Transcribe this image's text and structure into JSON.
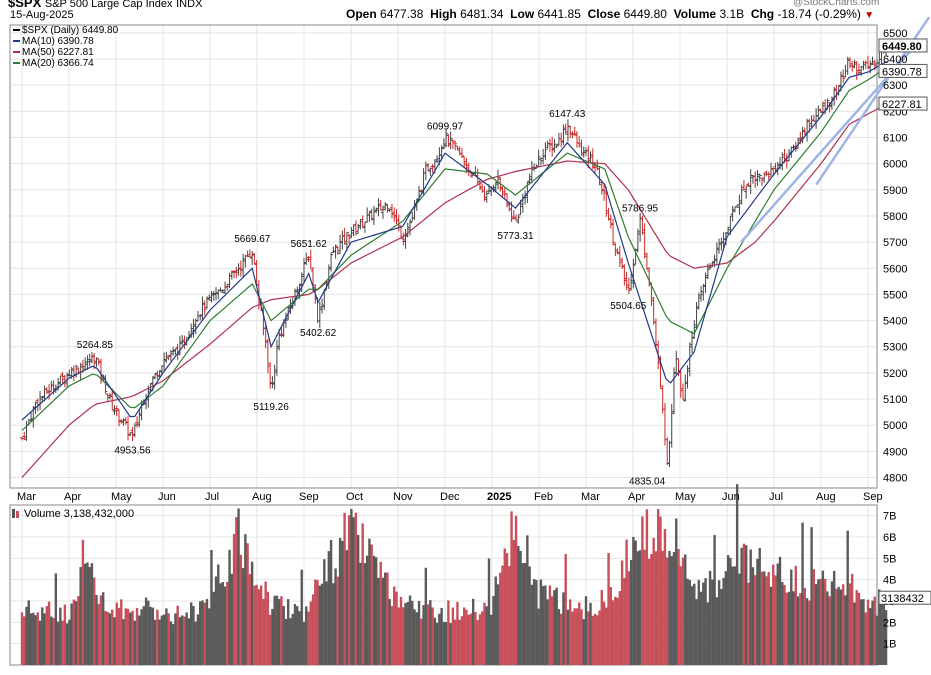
{
  "header": {
    "symbol": "$SPX",
    "name": "S&P 500 Large Cap Index",
    "exchange": "INDX",
    "date": "15-Aug-2025",
    "watermark": "@StockCharts.com",
    "open_label": "Open",
    "open": "6477.38",
    "high_label": "High",
    "high": "6481.34",
    "low_label": "Low",
    "low": "6441.85",
    "close_label": "Close",
    "close": "6449.80",
    "volume_label": "Volume",
    "volume": "3.1B",
    "chg_label": "Chg",
    "chg": "-18.74 (-0.29%)"
  },
  "legend": [
    {
      "text": "$SPX (Daily) 6449.80",
      "color": "#000000"
    },
    {
      "text": "MA(10) 6390.78",
      "color": "#1f3a8a"
    },
    {
      "text": "MA(50) 6227.81",
      "color": "#b03050"
    },
    {
      "text": "MA(20) 6366.74",
      "color": "#2e7d32"
    }
  ],
  "volume_legend": "Volume 3,138,432,000",
  "price_tags": [
    {
      "text": "6449.80",
      "value": 6449.8,
      "bold": true
    },
    {
      "text": "6390.78",
      "value": 6390.78,
      "bold": false
    },
    {
      "text": "6227.81",
      "value": 6227.81,
      "bold": false
    }
  ],
  "volume_tag": "3138432",
  "colors": {
    "up": "#444444",
    "down": "#c82828",
    "bar_up": "#5a5a5a",
    "bar_down": "#c8505a",
    "ma10": "#1f3a8a",
    "ma20": "#2e7d32",
    "ma50": "#b03050",
    "trend": "#9fb4e6",
    "grid": "#e4e4e4"
  },
  "chart_data": {
    "type": "line",
    "title": "$SPX (Daily)",
    "x_ticks": [
      "Mar",
      "Apr",
      "May",
      "Jun",
      "Jul",
      "Aug",
      "Sep",
      "Oct",
      "Nov",
      "Dec",
      "2025",
      "Feb",
      "Mar",
      "Apr",
      "May",
      "Jun",
      "Jul",
      "Aug",
      "Sep"
    ],
    "y_ticks": [
      4800,
      4900,
      5000,
      5100,
      5200,
      5300,
      5400,
      5500,
      5600,
      5700,
      5800,
      5900,
      6000,
      6100,
      6200,
      6300,
      6400,
      6500
    ],
    "ylim": [
      4760,
      6530
    ],
    "volume_ticks": [
      "1B",
      "2B",
      "3B",
      "4B",
      "5B",
      "6B",
      "7B"
    ],
    "volume_ylim": [
      0,
      7.5
    ],
    "grid": true,
    "annotations": [
      {
        "text": "5264.85",
        "month": 1.55,
        "value": 5264.85,
        "pos": "above"
      },
      {
        "text": "4953.56",
        "month": 2.35,
        "value": 4953.56,
        "pos": "below"
      },
      {
        "text": "5669.67",
        "month": 4.9,
        "value": 5669.67,
        "pos": "above"
      },
      {
        "text": "5119.26",
        "month": 5.3,
        "value": 5119.26,
        "pos": "below"
      },
      {
        "text": "5651.62",
        "month": 6.1,
        "value": 5651.62,
        "pos": "above"
      },
      {
        "text": "5402.62",
        "month": 6.3,
        "value": 5402.62,
        "pos": "below"
      },
      {
        "text": "6099.97",
        "month": 9.0,
        "value": 6099.97,
        "pos": "above"
      },
      {
        "text": "5773.31",
        "month": 10.5,
        "value": 5773.31,
        "pos": "below"
      },
      {
        "text": "6147.43",
        "month": 11.6,
        "value": 6147.43,
        "pos": "above"
      },
      {
        "text": "5786.95",
        "month": 13.15,
        "value": 5786.95,
        "pos": "above"
      },
      {
        "text": "5504.65",
        "month": 12.9,
        "value": 5504.65,
        "pos": "below"
      },
      {
        "text": "4835.04",
        "month": 13.3,
        "value": 4835.04,
        "pos": "below"
      }
    ],
    "close_points": [
      [
        0,
        4950
      ],
      [
        0.3,
        5090
      ],
      [
        0.6,
        5140
      ],
      [
        1.0,
        5200
      ],
      [
        1.4,
        5240
      ],
      [
        1.55,
        5264.85
      ],
      [
        1.9,
        5080
      ],
      [
        2.35,
        4953.56
      ],
      [
        2.6,
        5110
      ],
      [
        3.0,
        5250
      ],
      [
        3.4,
        5300
      ],
      [
        3.7,
        5420
      ],
      [
        4.0,
        5480
      ],
      [
        4.3,
        5530
      ],
      [
        4.6,
        5600
      ],
      [
        4.9,
        5669.67
      ],
      [
        5.05,
        5460
      ],
      [
        5.2,
        5300
      ],
      [
        5.3,
        5119.26
      ],
      [
        5.45,
        5330
      ],
      [
        5.7,
        5450
      ],
      [
        6.1,
        5651.62
      ],
      [
        6.3,
        5402.62
      ],
      [
        6.6,
        5660
      ],
      [
        7.0,
        5740
      ],
      [
        7.4,
        5800
      ],
      [
        7.8,
        5850
      ],
      [
        8.1,
        5720
      ],
      [
        8.3,
        5790
      ],
      [
        8.6,
        5980
      ],
      [
        8.8,
        6020
      ],
      [
        9.0,
        6099.97
      ],
      [
        9.3,
        6040
      ],
      [
        9.6,
        5950
      ],
      [
        9.9,
        5870
      ],
      [
        10.1,
        5950
      ],
      [
        10.3,
        5850
      ],
      [
        10.5,
        5773.31
      ],
      [
        10.8,
        5950
      ],
      [
        11.1,
        6050
      ],
      [
        11.4,
        6080
      ],
      [
        11.6,
        6147.43
      ],
      [
        11.9,
        6050
      ],
      [
        12.2,
        5990
      ],
      [
        12.4,
        5860
      ],
      [
        12.6,
        5700
      ],
      [
        12.75,
        5600
      ],
      [
        12.9,
        5504.65
      ],
      [
        13.15,
        5786.95
      ],
      [
        13.35,
        5550
      ],
      [
        13.55,
        5200
      ],
      [
        13.75,
        4835.04
      ],
      [
        13.9,
        5300
      ],
      [
        14.05,
        5100
      ],
      [
        14.3,
        5400
      ],
      [
        14.6,
        5600
      ],
      [
        14.9,
        5700
      ],
      [
        15.2,
        5850
      ],
      [
        15.5,
        5950
      ],
      [
        15.8,
        5950
      ],
      [
        16.1,
        6000
      ],
      [
        16.4,
        6050
      ],
      [
        16.7,
        6150
      ],
      [
        17.0,
        6200
      ],
      [
        17.3,
        6270
      ],
      [
        17.6,
        6390
      ],
      [
        17.8,
        6360
      ],
      [
        18.0,
        6370
      ],
      [
        18.2,
        6400
      ],
      [
        18.4,
        6449.8
      ]
    ],
    "ma10_points": [
      [
        0,
        5020
      ],
      [
        1.0,
        5180
      ],
      [
        1.55,
        5230
      ],
      [
        2.35,
        5020
      ],
      [
        3.0,
        5200
      ],
      [
        4.0,
        5440
      ],
      [
        4.9,
        5600
      ],
      [
        5.3,
        5300
      ],
      [
        6.1,
        5580
      ],
      [
        6.3,
        5470
      ],
      [
        7.0,
        5700
      ],
      [
        8.1,
        5760
      ],
      [
        9.0,
        6040
      ],
      [
        9.9,
        5920
      ],
      [
        10.5,
        5830
      ],
      [
        11.6,
        6080
      ],
      [
        12.4,
        5920
      ],
      [
        12.9,
        5620
      ],
      [
        13.75,
        5150
      ],
      [
        14.3,
        5280
      ],
      [
        15.0,
        5720
      ],
      [
        16.0,
        5960
      ],
      [
        17.0,
        6180
      ],
      [
        17.6,
        6330
      ],
      [
        18.0,
        6350
      ],
      [
        18.4,
        6390.78
      ]
    ],
    "ma20_points": [
      [
        0,
        4980
      ],
      [
        1.0,
        5150
      ],
      [
        1.55,
        5200
      ],
      [
        2.35,
        5060
      ],
      [
        3.0,
        5150
      ],
      [
        4.0,
        5400
      ],
      [
        4.9,
        5540
      ],
      [
        5.3,
        5400
      ],
      [
        6.1,
        5520
      ],
      [
        6.3,
        5520
      ],
      [
        7.0,
        5650
      ],
      [
        8.1,
        5780
      ],
      [
        9.0,
        5980
      ],
      [
        9.9,
        5960
      ],
      [
        10.5,
        5880
      ],
      [
        11.6,
        6040
      ],
      [
        12.4,
        5980
      ],
      [
        12.9,
        5720
      ],
      [
        13.75,
        5400
      ],
      [
        14.3,
        5350
      ],
      [
        15.0,
        5600
      ],
      [
        16.0,
        5900
      ],
      [
        17.0,
        6120
      ],
      [
        17.6,
        6280
      ],
      [
        18.0,
        6320
      ],
      [
        18.4,
        6366.74
      ]
    ],
    "ma50_points": [
      [
        0,
        4800
      ],
      [
        1.0,
        5000
      ],
      [
        1.55,
        5080
      ],
      [
        2.35,
        5110
      ],
      [
        3.0,
        5170
      ],
      [
        4.0,
        5310
      ],
      [
        4.9,
        5450
      ],
      [
        5.3,
        5480
      ],
      [
        6.1,
        5500
      ],
      [
        6.3,
        5520
      ],
      [
        7.0,
        5620
      ],
      [
        8.1,
        5720
      ],
      [
        9.0,
        5850
      ],
      [
        9.9,
        5940
      ],
      [
        10.5,
        5970
      ],
      [
        11.6,
        6010
      ],
      [
        12.4,
        6000
      ],
      [
        12.9,
        5900
      ],
      [
        13.75,
        5650
      ],
      [
        14.3,
        5600
      ],
      [
        15.0,
        5620
      ],
      [
        15.6,
        5700
      ],
      [
        16.0,
        5780
      ],
      [
        17.0,
        6000
      ],
      [
        17.6,
        6150
      ],
      [
        18.0,
        6190
      ],
      [
        18.4,
        6227.81
      ]
    ],
    "trendlines": [
      {
        "from": [
          15.3,
          5700
        ],
        "to": [
          19.0,
          6450
        ]
      },
      {
        "from": [
          16.9,
          5920
        ],
        "to": [
          19.3,
          6560
        ]
      }
    ],
    "volume_points": [
      [
        0,
        2.6
      ],
      [
        1.0,
        2.5
      ],
      [
        1.3,
        5.1
      ],
      [
        1.8,
        2.6
      ],
      [
        2.5,
        2.7
      ],
      [
        3.5,
        2.5
      ],
      [
        4.0,
        3.0
      ],
      [
        4.6,
        6.2
      ],
      [
        5.3,
        3.0
      ],
      [
        6.0,
        2.6
      ],
      [
        7.0,
        6.6
      ],
      [
        8.0,
        2.8
      ],
      [
        9.5,
        2.5
      ],
      [
        10.0,
        3.0
      ],
      [
        10.55,
        7.0
      ],
      [
        11.0,
        3.4
      ],
      [
        12.0,
        2.8
      ],
      [
        12.5,
        3.1
      ],
      [
        13.0,
        5.7
      ],
      [
        13.4,
        6.7
      ],
      [
        13.6,
        6.5
      ],
      [
        13.8,
        6.8
      ],
      [
        14.1,
        4.4
      ],
      [
        14.8,
        3.5
      ],
      [
        15.2,
        5.0
      ],
      [
        15.9,
        4.4
      ],
      [
        16.8,
        3.8
      ],
      [
        17.6,
        3.7
      ],
      [
        18.0,
        3.0
      ],
      [
        18.4,
        3.1
      ]
    ]
  }
}
